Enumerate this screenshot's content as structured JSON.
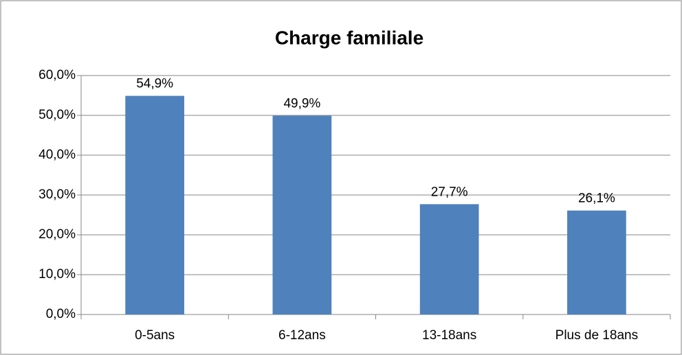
{
  "chart_data": {
    "type": "bar",
    "title": "Charge familiale",
    "categories": [
      "0-5ans",
      "6-12ans",
      "13-18ans",
      "Plus de 18ans"
    ],
    "values": [
      54.9,
      49.9,
      27.7,
      26.1
    ],
    "value_labels": [
      "54,9%",
      "49,9%",
      "27,7%",
      "26,1%"
    ],
    "color": "#4f81bd",
    "ylim": [
      0,
      60
    ],
    "yticks": [
      {
        "value": 0,
        "label": "0,0%"
      },
      {
        "value": 10,
        "label": "10,0%"
      },
      {
        "value": 20,
        "label": "20,0%"
      },
      {
        "value": 30,
        "label": "30,0%"
      },
      {
        "value": 40,
        "label": "40,0%"
      },
      {
        "value": 50,
        "label": "50,0%"
      },
      {
        "value": 60,
        "label": "60,0%"
      }
    ],
    "grid": true
  }
}
